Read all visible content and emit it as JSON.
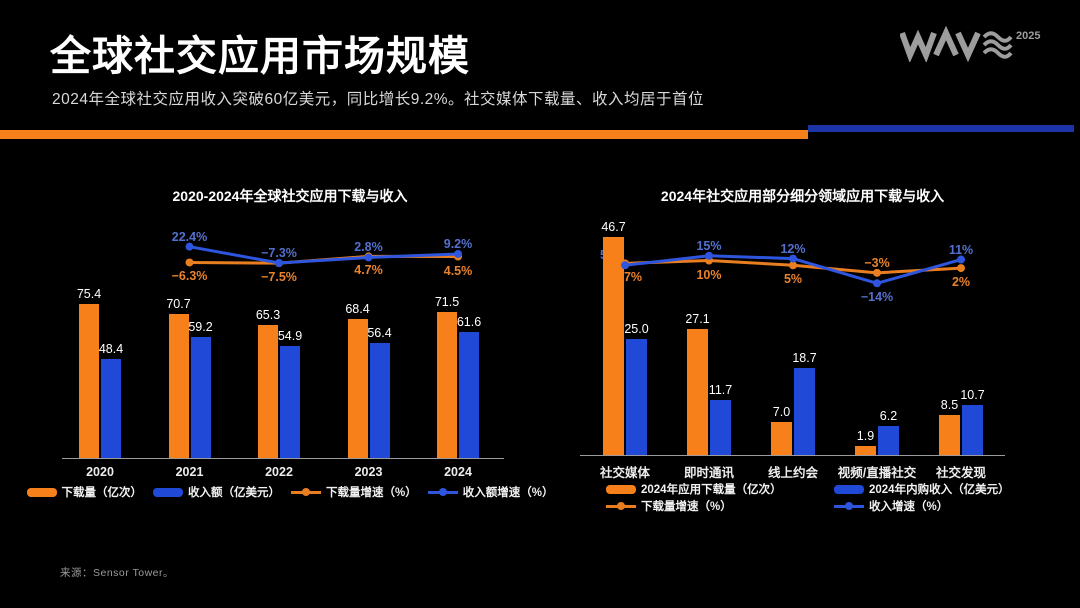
{
  "header": {
    "title": "全球社交应用市场规模",
    "subtitle": "2024年全球社交应用收入突破60亿美元，同比增长9.2%。社交媒体下载量、收入均居于首位",
    "logo_text": "WAVE",
    "logo_year": "2025"
  },
  "colors": {
    "orange": "#F8801A",
    "blue": "#2049D8",
    "orange_line": "#E87E20",
    "blue_line": "#2E55DE",
    "orange_label": "#E9832E",
    "blue_label": "#5470CE",
    "divider_blue": "#1C34A6",
    "logo_gray": "#9d9d9d",
    "background": "#000000"
  },
  "footer": {
    "source": "来源：Sensor Tower。"
  },
  "chart_data": [
    {
      "type": "bar+line",
      "title": "2020-2024年全球社交应用下载与收入",
      "categories": [
        "2020",
        "2021",
        "2022",
        "2023",
        "2024"
      ],
      "ylim": [
        0,
        80
      ],
      "grid": false,
      "legend_position": "bottom",
      "bar_series": [
        {
          "name": "下载量（亿次）",
          "color": "orange",
          "values": [
            75.4,
            70.7,
            65.3,
            68.4,
            71.5
          ],
          "labels": [
            "75.4",
            "70.7",
            "65.3",
            "68.4",
            "71.5"
          ]
        },
        {
          "name": "收入额（亿美元）",
          "color": "blue",
          "values": [
            48.4,
            59.2,
            54.9,
            56.4,
            61.6
          ],
          "labels": [
            "48.4",
            "59.2",
            "54.9",
            "56.4",
            "61.6"
          ]
        }
      ],
      "line_series": [
        {
          "name": "下载量增速（%）",
          "color": "orange",
          "x_categories": [
            "2021",
            "2022",
            "2023",
            "2024"
          ],
          "values": [
            -6.3,
            -7.5,
            4.7,
            4.5
          ],
          "labels": [
            "−6.3%",
            "−7.5%",
            "4.7%",
            "4.5%"
          ]
        },
        {
          "name": "收入额增速（%）",
          "color": "blue",
          "x_categories": [
            "2021",
            "2022",
            "2023",
            "2024"
          ],
          "values": [
            22.4,
            -7.3,
            2.8,
            9.2
          ],
          "labels": [
            "22.4%",
            "−7.3%",
            "2.8%",
            "9.2%"
          ]
        }
      ]
    },
    {
      "type": "bar+line",
      "title": "2024年社交应用部分细分领域应用下载与收入",
      "categories": [
        "社交媒体",
        "即时通讯",
        "线上约会",
        "视频/直播社交",
        "社交发现"
      ],
      "ylim": [
        0,
        50
      ],
      "grid": false,
      "legend_position": "bottom",
      "bar_series": [
        {
          "name": "2024年应用下载量（亿次）",
          "color": "orange",
          "values": [
            46.7,
            27.1,
            7.0,
            1.9,
            8.5
          ],
          "labels": [
            "46.7",
            "27.1",
            "7.0",
            "1.9",
            "8.5"
          ]
        },
        {
          "name": "2024年内购收入（亿美元）",
          "color": "blue",
          "values": [
            25.0,
            11.7,
            18.7,
            6.2,
            10.7
          ],
          "labels": [
            "25.0",
            "11.7",
            "18.7",
            "6.2",
            "10.7"
          ]
        }
      ],
      "line_series": [
        {
          "name": "下载量增速（%）",
          "color": "orange",
          "x_categories": [
            "社交媒体",
            "即时通讯",
            "线上约会",
            "视频/直播社交",
            "社交发现"
          ],
          "values": [
            7,
            10,
            5,
            -3,
            2
          ],
          "labels": [
            "7%",
            "10%",
            "5%",
            "−3%",
            "2%"
          ]
        },
        {
          "name": "收入增速（%）",
          "color": "blue",
          "x_categories": [
            "社交媒体",
            "即时通讯",
            "线上约会",
            "视频/直播社交",
            "社交发现"
          ],
          "values": [
            5,
            15,
            12,
            -14,
            11
          ],
          "labels": [
            "5%",
            "15%",
            "12%",
            "−14%",
            "11%"
          ]
        }
      ]
    }
  ]
}
